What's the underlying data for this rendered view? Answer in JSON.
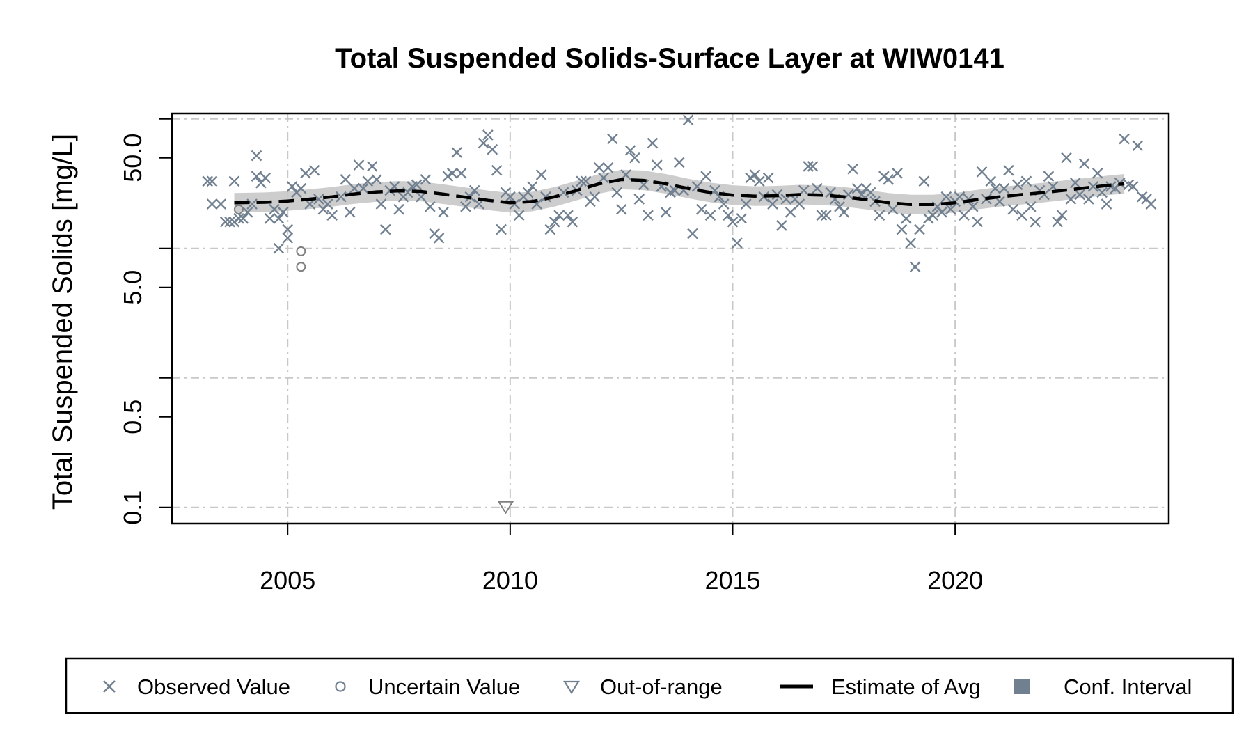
{
  "chart_data": {
    "type": "scatter",
    "title": "Total Suspended Solids-Surface Layer at WIW0141",
    "ylabel": "Total Suspended Solids [mg/L]",
    "xlabel": "",
    "yscale": "log",
    "xlim": [
      2002.4,
      2024.8
    ],
    "ylim": [
      0.075,
      110
    ],
    "x_ticks": [
      {
        "value": 2005,
        "label": "2005"
      },
      {
        "value": 2010,
        "label": "2010"
      },
      {
        "value": 2015,
        "label": "2015"
      },
      {
        "value": 2020,
        "label": "2020"
      }
    ],
    "y_ticks": [
      {
        "value": 0.1,
        "label": "0.1"
      },
      {
        "value": 0.5,
        "label": "0.5"
      },
      {
        "value": 5,
        "label": "5.0"
      },
      {
        "value": 50,
        "label": "50.0"
      }
    ],
    "y_grid": [
      0.1,
      1,
      10,
      100
    ],
    "grid": true,
    "colors": {
      "observed": "#708090",
      "estimate": "#000000",
      "ci": "#c8c8c8",
      "grid": "#c8c8c8"
    },
    "legend": {
      "position": "bottom",
      "items": [
        {
          "label": "Observed Value",
          "symbol": "x"
        },
        {
          "label": "Uncertain Value",
          "symbol": "circle"
        },
        {
          "label": "Out-of-range",
          "symbol": "triangle"
        },
        {
          "label": "Estimate of Avg",
          "symbol": "line"
        },
        {
          "label": "Conf. Interval",
          "symbol": "square"
        }
      ]
    },
    "series": [
      {
        "name": "Observed Value",
        "points": [
          [
            2003.2,
            33
          ],
          [
            2003.3,
            33
          ],
          [
            2003.3,
            22
          ],
          [
            2003.5,
            22
          ],
          [
            2003.6,
            16
          ],
          [
            2003.7,
            16
          ],
          [
            2003.8,
            16
          ],
          [
            2003.8,
            33
          ],
          [
            2003.9,
            17
          ],
          [
            2004.0,
            17
          ],
          [
            2004.1,
            19
          ],
          [
            2004.2,
            22
          ],
          [
            2004.3,
            36
          ],
          [
            2004.3,
            52
          ],
          [
            2004.4,
            32
          ],
          [
            2004.5,
            35
          ],
          [
            2004.6,
            17
          ],
          [
            2004.7,
            20
          ],
          [
            2004.8,
            17
          ],
          [
            2004.9,
            19
          ],
          [
            2005.0,
            12
          ],
          [
            2004.8,
            10
          ],
          [
            2005.0,
            14
          ],
          [
            2005.1,
            30
          ],
          [
            2005.2,
            27
          ],
          [
            2005.3,
            29
          ],
          [
            2005.4,
            38
          ],
          [
            2005.5,
            22
          ],
          [
            2005.6,
            40
          ],
          [
            2005.7,
            24
          ],
          [
            2005.8,
            20
          ],
          [
            2005.9,
            22
          ],
          [
            2006.0,
            18
          ],
          [
            2006.2,
            25
          ],
          [
            2006.3,
            34
          ],
          [
            2006.4,
            19
          ],
          [
            2006.5,
            29
          ],
          [
            2006.6,
            44
          ],
          [
            2006.7,
            29
          ],
          [
            2006.8,
            33
          ],
          [
            2006.9,
            43
          ],
          [
            2007.0,
            34
          ],
          [
            2007.1,
            22
          ],
          [
            2007.2,
            14
          ],
          [
            2007.3,
            28
          ],
          [
            2007.4,
            30
          ],
          [
            2007.5,
            20
          ],
          [
            2007.6,
            25
          ],
          [
            2007.7,
            27
          ],
          [
            2007.8,
            30
          ],
          [
            2007.9,
            31
          ],
          [
            2008.0,
            25
          ],
          [
            2008.1,
            34
          ],
          [
            2008.2,
            21
          ],
          [
            2008.3,
            13
          ],
          [
            2008.4,
            12
          ],
          [
            2008.5,
            19
          ],
          [
            2008.6,
            36
          ],
          [
            2008.7,
            38
          ],
          [
            2008.8,
            55
          ],
          [
            2008.9,
            38
          ],
          [
            2009.0,
            21
          ],
          [
            2009.1,
            25
          ],
          [
            2009.2,
            28
          ],
          [
            2009.3,
            22
          ],
          [
            2009.4,
            65
          ],
          [
            2009.5,
            75
          ],
          [
            2009.6,
            58
          ],
          [
            2009.7,
            40
          ],
          [
            2009.8,
            14
          ],
          [
            2009.9,
            27
          ],
          [
            2010.0,
            25
          ],
          [
            2010.1,
            22
          ],
          [
            2010.2,
            18
          ],
          [
            2010.3,
            25
          ],
          [
            2010.4,
            27
          ],
          [
            2010.5,
            30
          ],
          [
            2010.6,
            22
          ],
          [
            2010.7,
            37
          ],
          [
            2010.8,
            25
          ],
          [
            2010.9,
            14
          ],
          [
            2011.0,
            16
          ],
          [
            2011.1,
            18
          ],
          [
            2011.2,
            27
          ],
          [
            2011.3,
            18
          ],
          [
            2011.4,
            16
          ],
          [
            2011.5,
            28
          ],
          [
            2011.6,
            33
          ],
          [
            2011.7,
            33
          ],
          [
            2011.8,
            23
          ],
          [
            2011.9,
            25
          ],
          [
            2012.0,
            42
          ],
          [
            2012.1,
            35
          ],
          [
            2012.2,
            42
          ],
          [
            2012.3,
            70
          ],
          [
            2012.4,
            27
          ],
          [
            2012.5,
            20
          ],
          [
            2012.6,
            37
          ],
          [
            2012.7,
            57
          ],
          [
            2012.8,
            50
          ],
          [
            2012.9,
            24
          ],
          [
            2013.0,
            31
          ],
          [
            2013.1,
            18
          ],
          [
            2013.2,
            65
          ],
          [
            2013.3,
            44
          ],
          [
            2013.4,
            30
          ],
          [
            2013.5,
            19
          ],
          [
            2013.6,
            27
          ],
          [
            2013.7,
            28
          ],
          [
            2013.8,
            46
          ],
          [
            2013.9,
            28
          ],
          [
            2014.0,
            98
          ],
          [
            2014.1,
            13
          ],
          [
            2014.2,
            30
          ],
          [
            2014.3,
            20
          ],
          [
            2014.4,
            36
          ],
          [
            2014.5,
            18
          ],
          [
            2014.6,
            28
          ],
          [
            2014.7,
            25
          ],
          [
            2014.8,
            22
          ],
          [
            2014.9,
            18
          ],
          [
            2015.0,
            16
          ],
          [
            2015.1,
            11
          ],
          [
            2015.2,
            17
          ],
          [
            2015.3,
            22
          ],
          [
            2015.4,
            35
          ],
          [
            2015.5,
            37
          ],
          [
            2015.6,
            33
          ],
          [
            2015.7,
            25
          ],
          [
            2015.8,
            35
          ],
          [
            2015.9,
            22
          ],
          [
            2016.0,
            26
          ],
          [
            2016.1,
            15
          ],
          [
            2016.2,
            24
          ],
          [
            2016.3,
            19
          ],
          [
            2016.4,
            24
          ],
          [
            2016.5,
            22
          ],
          [
            2016.6,
            28
          ],
          [
            2016.7,
            43
          ],
          [
            2016.8,
            43
          ],
          [
            2016.9,
            29
          ],
          [
            2017.0,
            18
          ],
          [
            2017.1,
            18
          ],
          [
            2017.2,
            27
          ],
          [
            2017.3,
            24
          ],
          [
            2017.4,
            21
          ],
          [
            2017.5,
            19
          ],
          [
            2017.6,
            26
          ],
          [
            2017.7,
            41
          ],
          [
            2017.8,
            29
          ],
          [
            2017.9,
            26
          ],
          [
            2018.0,
            29
          ],
          [
            2018.1,
            27
          ],
          [
            2018.2,
            23
          ],
          [
            2018.3,
            18
          ],
          [
            2018.4,
            36
          ],
          [
            2018.5,
            34
          ],
          [
            2018.6,
            20
          ],
          [
            2018.7,
            38
          ],
          [
            2018.8,
            14
          ],
          [
            2018.9,
            17
          ],
          [
            2019.0,
            11
          ],
          [
            2019.1,
            7.2
          ],
          [
            2019.2,
            14
          ],
          [
            2019.3,
            33
          ],
          [
            2019.4,
            17
          ],
          [
            2019.5,
            18
          ],
          [
            2019.6,
            21
          ],
          [
            2019.7,
            19
          ],
          [
            2019.8,
            25
          ],
          [
            2019.9,
            20
          ],
          [
            2020.0,
            23
          ],
          [
            2020.1,
            25
          ],
          [
            2020.2,
            18
          ],
          [
            2020.3,
            24
          ],
          [
            2020.4,
            21
          ],
          [
            2020.5,
            16
          ],
          [
            2020.6,
            39
          ],
          [
            2020.7,
            24
          ],
          [
            2020.8,
            33
          ],
          [
            2020.9,
            29
          ],
          [
            2021.0,
            23
          ],
          [
            2021.1,
            29
          ],
          [
            2021.2,
            40
          ],
          [
            2021.3,
            20
          ],
          [
            2021.4,
            31
          ],
          [
            2021.5,
            18
          ],
          [
            2021.6,
            33
          ],
          [
            2021.7,
            21
          ],
          [
            2021.8,
            16
          ],
          [
            2021.9,
            28
          ],
          [
            2022.0,
            26
          ],
          [
            2022.1,
            36
          ],
          [
            2022.2,
            30
          ],
          [
            2022.3,
            16
          ],
          [
            2022.4,
            18
          ],
          [
            2022.5,
            50
          ],
          [
            2022.6,
            24
          ],
          [
            2022.7,
            32
          ],
          [
            2022.8,
            26
          ],
          [
            2022.9,
            45
          ],
          [
            2023.0,
            24
          ],
          [
            2023.1,
            30
          ],
          [
            2023.2,
            38
          ],
          [
            2023.3,
            27
          ],
          [
            2023.4,
            22
          ],
          [
            2023.5,
            30
          ],
          [
            2023.6,
            29
          ],
          [
            2023.7,
            32
          ],
          [
            2023.8,
            70
          ],
          [
            2023.9,
            31
          ],
          [
            2024.0,
            30
          ],
          [
            2024.1,
            62
          ],
          [
            2024.2,
            25
          ],
          [
            2024.3,
            24
          ],
          [
            2024.4,
            22
          ]
        ]
      },
      {
        "name": "Uncertain Value",
        "points": [
          [
            2003.9,
            20
          ],
          [
            2005.3,
            9.5
          ],
          [
            2005.3,
            7.2
          ]
        ]
      },
      {
        "name": "Out-of-range",
        "points": [
          [
            2009.9,
            0.1
          ]
        ]
      },
      {
        "name": "Estimate of Avg",
        "points": [
          [
            2003.8,
            22.5
          ],
          [
            2004.5,
            22.7
          ],
          [
            2005.0,
            23.2
          ],
          [
            2005.5,
            24.0
          ],
          [
            2006.0,
            25.0
          ],
          [
            2006.5,
            26.3
          ],
          [
            2007.0,
            27.3
          ],
          [
            2007.5,
            27.8
          ],
          [
            2008.0,
            27.5
          ],
          [
            2008.5,
            26.2
          ],
          [
            2009.0,
            24.8
          ],
          [
            2009.5,
            23.5
          ],
          [
            2010.0,
            22.5
          ],
          [
            2010.5,
            23.0
          ],
          [
            2011.0,
            25.0
          ],
          [
            2011.5,
            28.0
          ],
          [
            2012.0,
            31.5
          ],
          [
            2012.5,
            34.0
          ],
          [
            2013.0,
            33.5
          ],
          [
            2013.5,
            31.5
          ],
          [
            2014.0,
            29.0
          ],
          [
            2014.5,
            27.0
          ],
          [
            2015.0,
            25.8
          ],
          [
            2015.5,
            25.3
          ],
          [
            2016.0,
            25.5
          ],
          [
            2016.5,
            26.0
          ],
          [
            2017.0,
            25.8
          ],
          [
            2017.5,
            25.0
          ],
          [
            2018.0,
            23.8
          ],
          [
            2018.5,
            22.5
          ],
          [
            2019.0,
            21.8
          ],
          [
            2019.5,
            21.8
          ],
          [
            2020.0,
            22.5
          ],
          [
            2020.5,
            23.8
          ],
          [
            2021.0,
            25.0
          ],
          [
            2021.5,
            26.0
          ],
          [
            2022.0,
            27.0
          ],
          [
            2022.5,
            28.2
          ],
          [
            2023.0,
            29.5
          ],
          [
            2023.5,
            30.8
          ],
          [
            2023.8,
            31.5
          ]
        ]
      },
      {
        "name": "Conf. Interval",
        "lower_ratio": 0.84,
        "upper_ratio": 1.19
      }
    ]
  }
}
